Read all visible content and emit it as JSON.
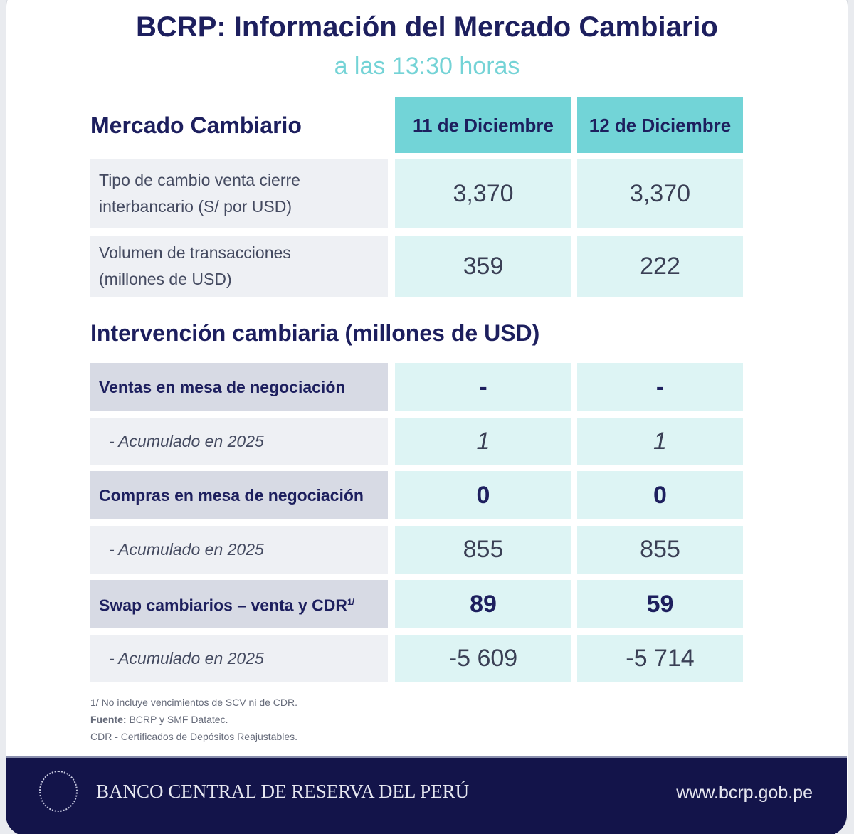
{
  "title": "BCRP: Información del Mercado Cambiario",
  "subtitle": "a las 13:30 horas",
  "section1": {
    "title": "Mercado Cambiario",
    "columns": [
      "11 de Diciembre",
      "12 de Diciembre"
    ],
    "rows": [
      {
        "label1": "Tipo de cambio venta cierre",
        "label2": "interbancario (S/ por USD)",
        "values": [
          "3,370",
          "3,370"
        ]
      },
      {
        "label1": "Volumen de transacciones",
        "label2": "(millones de USD)",
        "values": [
          "359",
          "222"
        ]
      }
    ]
  },
  "section2": {
    "title": "Intervención cambiaria (millones de USD)",
    "rows": [
      {
        "label": "Ventas en mesa de negociación",
        "values": [
          "-",
          "-"
        ]
      },
      {
        "label": "-  Acumulado en 2025",
        "values": [
          "1",
          "1"
        ]
      },
      {
        "label": "Compras en mesa de negociación",
        "values": [
          "0",
          "0"
        ]
      },
      {
        "label": "-  Acumulado en 2025",
        "values": [
          "855",
          "855"
        ]
      },
      {
        "label": "Swap cambiarios – venta y CDR",
        "sup": "1/",
        "values": [
          "89",
          "59"
        ]
      },
      {
        "label": "-  Acumulado en 2025",
        "values": [
          "-5 609",
          "-5 714"
        ]
      }
    ]
  },
  "notes": {
    "n1": "1/ No incluye vencimientos de SCV ni de CDR.",
    "source_label": "Fuente:",
    "source": " BCRP y SMF Datatec.",
    "n3": "CDR - Certificados de Depósitos Reajustables."
  },
  "footer": {
    "bank": "BANCO CENTRAL DE RESERVA DEL PERÚ",
    "website": "www.bcrp.gob.pe"
  }
}
